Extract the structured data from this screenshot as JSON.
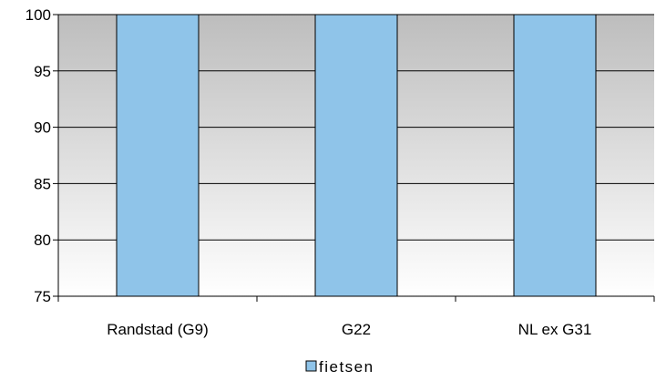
{
  "chart_data": {
    "type": "bar",
    "categories": [
      "Randstad (G9)",
      "G22",
      "NL ex G31"
    ],
    "series": [
      {
        "name": "fietsen",
        "values": [
          100,
          100,
          100
        ],
        "color": "#8fc4e9"
      }
    ],
    "ylim": [
      75,
      100
    ],
    "yticks": [
      75,
      80,
      85,
      90,
      95,
      100
    ],
    "grid": true,
    "legend_position": "bottom-center",
    "colors": {
      "bar_fill": "#8fc4e9",
      "bar_stroke": "#000000",
      "plot_background_top": "#bdbdbd",
      "plot_background_bottom": "#ffffff",
      "grid": "#000000"
    }
  }
}
